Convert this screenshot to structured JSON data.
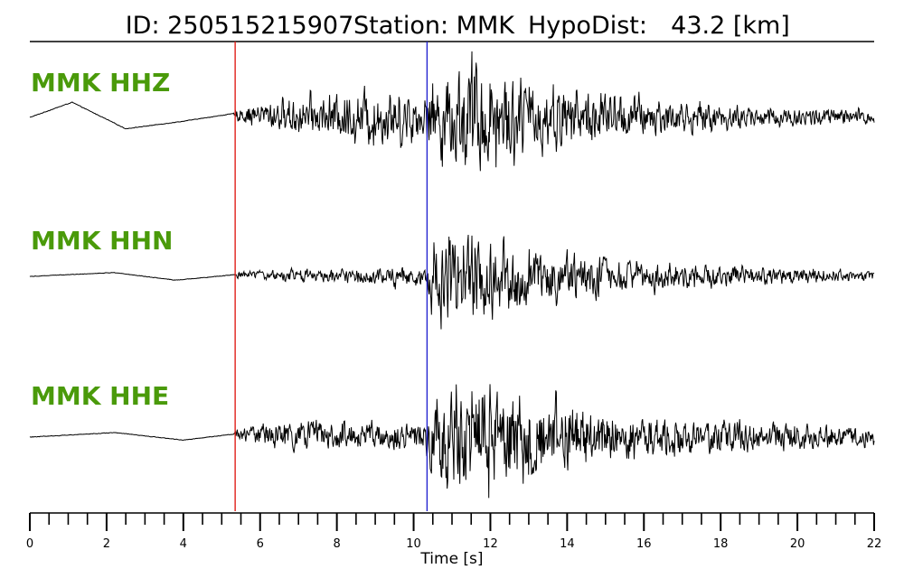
{
  "chart_data": {
    "type": "line",
    "title_parts": [
      "ID: 250515215907",
      "Station: MMK",
      "HypoDist:",
      "43.2 [km]"
    ],
    "xlabel": "Time [s]",
    "xlim": [
      0,
      22
    ],
    "x_major_ticks": [
      0,
      2,
      4,
      6,
      8,
      10,
      12,
      14,
      16,
      18,
      20,
      22
    ],
    "x_minor_step": 0.5,
    "grid": false,
    "label_color": "#4a9a0a",
    "trace_color": "#000000",
    "series": [
      {
        "name": "MMK HHZ",
        "envelope_x": [
          0,
          5.3,
          5.4,
          6.5,
          8,
          9,
          10,
          10.3,
          10.4,
          11,
          11.5,
          12,
          12.5,
          13.5,
          15,
          17,
          19,
          20.5,
          22
        ],
        "envelope_y": [
          0.005,
          0.005,
          0.12,
          0.26,
          0.38,
          0.48,
          0.42,
          0.32,
          0.6,
          0.75,
          0.98,
          0.92,
          0.72,
          0.55,
          0.42,
          0.26,
          0.18,
          0.16,
          0.12
        ],
        "pre_wave": [
          [
            0,
            0
          ],
          [
            1.1,
            0.2
          ],
          [
            2.5,
            -0.15
          ],
          [
            4,
            -0.05
          ],
          [
            5.3,
            0.05
          ]
        ]
      },
      {
        "name": "MMK HHN",
        "envelope_x": [
          0,
          5.3,
          5.4,
          7,
          9,
          10.3,
          10.4,
          11,
          11.8,
          12.5,
          13.5,
          15,
          17,
          19,
          20.5,
          22
        ],
        "envelope_y": [
          0.005,
          0.005,
          0.06,
          0.1,
          0.14,
          0.18,
          0.6,
          0.82,
          0.65,
          0.55,
          0.42,
          0.3,
          0.22,
          0.14,
          0.12,
          0.08
        ],
        "pre_wave": [
          [
            0,
            0
          ],
          [
            2.2,
            0.05
          ],
          [
            3.8,
            -0.05
          ],
          [
            5.3,
            0.02
          ]
        ]
      },
      {
        "name": "MMK HHE",
        "envelope_x": [
          0,
          5.3,
          5.4,
          7,
          9,
          10.3,
          10.4,
          11,
          11.8,
          12.5,
          13.5,
          15,
          17,
          19,
          20.5,
          22
        ],
        "envelope_y": [
          0.005,
          0.005,
          0.1,
          0.25,
          0.22,
          0.22,
          0.6,
          0.88,
          1.0,
          0.9,
          0.68,
          0.42,
          0.3,
          0.24,
          0.2,
          0.16
        ],
        "pre_wave": [
          [
            0,
            0
          ],
          [
            2.2,
            0.06
          ],
          [
            4,
            -0.04
          ],
          [
            5.3,
            0.04
          ]
        ]
      }
    ],
    "markers": [
      {
        "time": 5.35,
        "color": "#e0201a"
      },
      {
        "time": 10.35,
        "color": "#2424d0"
      }
    ]
  }
}
